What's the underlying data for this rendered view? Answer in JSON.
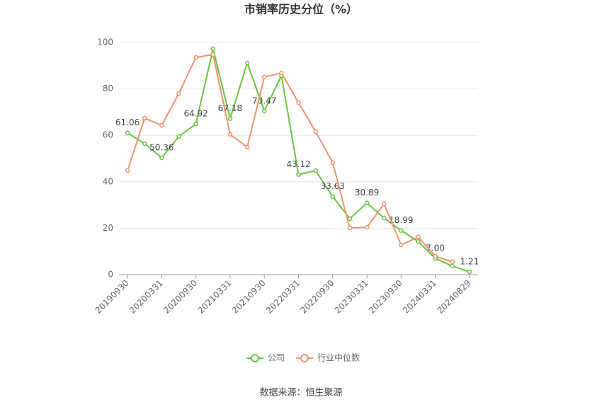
{
  "chart_data": {
    "type": "line",
    "title": "市销率历史分位（%）",
    "categories": [
      "20190930",
      null,
      "20200331",
      null,
      "20200930",
      null,
      "20210331",
      null,
      "20210930",
      null,
      "20220331",
      null,
      "20220930",
      null,
      "20230331",
      null,
      "20230930",
      null,
      "20240331",
      null,
      "20240829"
    ],
    "series": [
      {
        "name": "公司",
        "color": "#63c737",
        "values": [
          61.06,
          56.4,
          50.36,
          59.5,
          64.92,
          97.3,
          67.18,
          91.2,
          70.47,
          85.7,
          43.12,
          44.8,
          33.63,
          24.1,
          30.89,
          24.4,
          18.99,
          14.3,
          7.0,
          3.7,
          1.21
        ],
        "value_labels": [
          "61.06",
          null,
          "50.36",
          null,
          "64.92",
          null,
          "67.18",
          null,
          "70.47",
          null,
          "43.12",
          null,
          "33.63",
          null,
          "30.89",
          null,
          "18.99",
          null,
          "7.00",
          null,
          "1.21"
        ]
      },
      {
        "name": "行业中位数",
        "color": "#f0906a",
        "values": [
          44.8,
          67.4,
          64.3,
          78.0,
          93.6,
          94.8,
          60.4,
          54.9,
          85.1,
          86.9,
          74.1,
          61.6,
          48.2,
          20.1,
          20.4,
          30.5,
          12.8,
          16.2,
          7.9,
          5.5,
          null
        ]
      }
    ],
    "ylim": [
      0,
      100
    ],
    "yticks": [
      0,
      20,
      40,
      60,
      80,
      100
    ],
    "grid": true,
    "legend": "bottom",
    "source": "数据来源：恒生聚源"
  }
}
